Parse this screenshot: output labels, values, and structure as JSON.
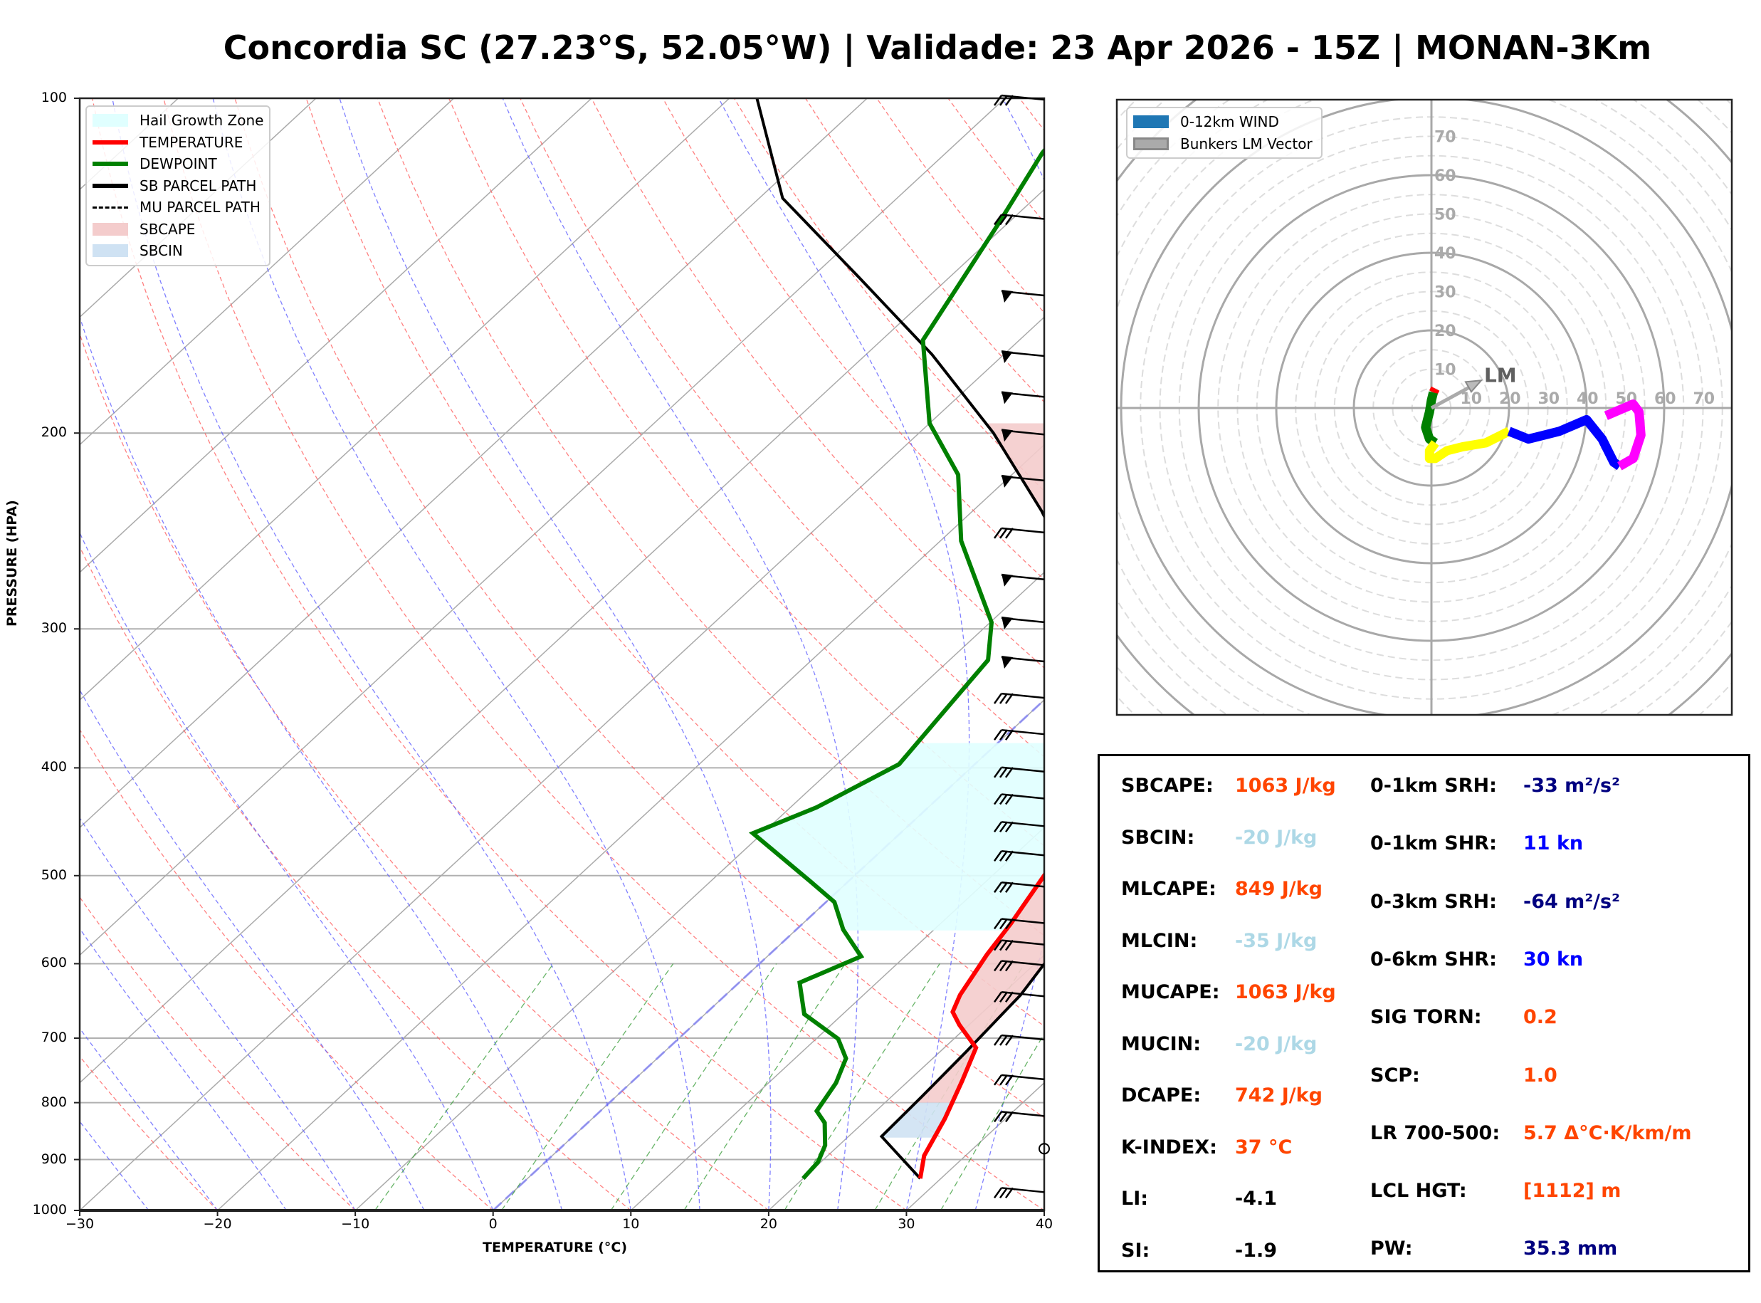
{
  "title": "Concordia SC (27.23°S, 52.05°W) | Validade: 23 Apr 2026 - 15Z | MONAN-3Km",
  "chart_data": [
    {
      "type": "line",
      "name": "skew-T log-P diagram",
      "xlabel": "TEMPERATURE (°C)",
      "ylabel": "PRESSURE (HPA)",
      "xlim": [
        -30,
        40
      ],
      "ylim": [
        1000,
        100
      ],
      "yscale": "log",
      "x_ticks": [
        "−30",
        "−20",
        "−10",
        "0",
        "10",
        "20",
        "30",
        "40"
      ],
      "y_ticks": [
        "100",
        "200",
        "300",
        "400",
        "500",
        "600",
        "700",
        "800",
        "900",
        "1000"
      ],
      "y_tick_values": [
        100,
        200,
        300,
        400,
        500,
        600,
        700,
        800,
        900,
        1000
      ],
      "legend": {
        "position": "top-left",
        "entries": [
          {
            "label": "Hail Growth Zone",
            "color": "#e0ffff",
            "kind": "patch"
          },
          {
            "label": "TEMPERATURE",
            "color": "#ff0000",
            "kind": "line"
          },
          {
            "label": "DEWPOINT",
            "color": "#008000",
            "kind": "line"
          },
          {
            "label": "SB PARCEL PATH",
            "color": "#000000",
            "kind": "line"
          },
          {
            "label": "MU PARCEL PATH",
            "color": "#000000",
            "kind": "dashed"
          },
          {
            "label": "SBCAPE",
            "color": "#f4cccc",
            "kind": "patch"
          },
          {
            "label": "SBCIN",
            "color": "#cfe2f3",
            "kind": "patch"
          }
        ]
      },
      "series": [
        {
          "name": "TEMPERATURE",
          "color": "#ff0000",
          "points": [
            [
              28.5,
              936
            ],
            [
              27.0,
              893
            ],
            [
              25.6,
              827
            ],
            [
              23.9,
              765
            ],
            [
              22.3,
              714
            ],
            [
              19.3,
              681
            ],
            [
              17.8,
              663
            ],
            [
              17.0,
              640
            ],
            [
              15.8,
              589
            ],
            [
              15.1,
              552
            ],
            [
              13.7,
              498
            ],
            [
              12.6,
              466
            ],
            [
              9.7,
              421
            ],
            [
              6.7,
              375
            ],
            [
              3.2,
              339
            ],
            [
              1.1,
              318
            ],
            [
              -1.8,
              294
            ],
            [
              -5.7,
              263
            ],
            [
              -10.8,
              227
            ],
            [
              -17.9,
              187
            ],
            [
              -20.6,
              166
            ],
            [
              -27.7,
              146
            ],
            [
              -30.0,
              129
            ],
            [
              -38.0,
              100
            ]
          ]
        },
        {
          "name": "DEWPOINT",
          "color": "#008000",
          "points": [
            [
              20.0,
              936
            ],
            [
              19.8,
              905
            ],
            [
              19.0,
              874
            ],
            [
              17.2,
              834
            ],
            [
              15.7,
              814
            ],
            [
              14.9,
              768
            ],
            [
              13.7,
              730
            ],
            [
              11.6,
              701
            ],
            [
              7.2,
              666
            ],
            [
              4.4,
              624
            ],
            [
              6.8,
              591
            ],
            [
              3.4,
              559
            ],
            [
              0.6,
              528
            ],
            [
              -2.6,
              507
            ],
            [
              -10.7,
              458
            ],
            [
              -8.1,
              434
            ],
            [
              -5.5,
              397
            ],
            [
              -6.5,
              350
            ],
            [
              -7.2,
              320
            ],
            [
              -9.9,
              296
            ],
            [
              -18.5,
              250
            ],
            [
              -23.9,
              218
            ],
            [
              -30.0,
              196
            ],
            [
              -37.0,
              165
            ],
            [
              -40.6,
              130
            ],
            [
              -43.0,
              112
            ],
            [
              -44.0,
              100
            ]
          ]
        },
        {
          "name": "SB PARCEL PATH",
          "color": "#000000",
          "points": [
            [
              28.5,
              936
            ],
            [
              25.2,
              893
            ],
            [
              22.4,
              858
            ],
            [
              22.2,
              790
            ],
            [
              21.9,
              720
            ],
            [
              21.4,
              640
            ],
            [
              20.3,
              580
            ],
            [
              18.4,
              520
            ],
            [
              15.8,
              470
            ],
            [
              12.1,
              420
            ],
            [
              7.3,
              370
            ],
            [
              1.0,
              320
            ],
            [
              -6.3,
              275
            ],
            [
              -15.0,
              235
            ],
            [
              -24.6,
              200
            ],
            [
              -35.2,
              170
            ],
            [
              -46.5,
              145
            ],
            [
              -58.3,
              123
            ],
            [
              -68.0,
              100
            ]
          ]
        }
      ],
      "areas": [
        {
          "name": "SBCAPE",
          "color": "#f4cccc",
          "between": [
            "TEMPERATURE",
            "SB PARCEL PATH"
          ],
          "p_range": [
            800,
            196
          ]
        },
        {
          "name": "SBCIN",
          "color": "#cfe2f3",
          "between": [
            "TEMPERATURE",
            "SB PARCEL PATH"
          ],
          "p_range": [
            860,
            800
          ]
        },
        {
          "name": "Hail Growth Zone",
          "color": "#e0ffff",
          "p_range": [
            560,
            380
          ]
        }
      ],
      "wind_barbs": [
        {
          "p": 100,
          "label": "barb"
        },
        {
          "p": 128,
          "label": "barb"
        },
        {
          "p": 150,
          "label": "barb"
        },
        {
          "p": 170,
          "label": "barb"
        },
        {
          "p": 185,
          "label": "barb"
        },
        {
          "p": 200,
          "label": "barb"
        },
        {
          "p": 220,
          "label": "barb"
        },
        {
          "p": 245,
          "label": "barb"
        },
        {
          "p": 270,
          "label": "barb"
        },
        {
          "p": 295,
          "label": "barb"
        },
        {
          "p": 320,
          "label": "barb"
        },
        {
          "p": 345,
          "label": "barb"
        },
        {
          "p": 372,
          "label": "barb"
        },
        {
          "p": 402,
          "label": "barb"
        },
        {
          "p": 425,
          "label": "barb"
        },
        {
          "p": 450,
          "label": "barb"
        },
        {
          "p": 478,
          "label": "barb"
        },
        {
          "p": 510,
          "label": "barb"
        },
        {
          "p": 550,
          "label": "barb"
        },
        {
          "p": 575,
          "label": "barb"
        },
        {
          "p": 600,
          "label": "barb"
        },
        {
          "p": 640,
          "label": "barb"
        },
        {
          "p": 700,
          "label": "barb"
        },
        {
          "p": 760,
          "label": "barb"
        },
        {
          "p": 820,
          "label": "barb"
        },
        {
          "p": 880,
          "label": "calm"
        },
        {
          "p": 960,
          "label": "barb"
        }
      ]
    },
    {
      "type": "line",
      "name": "hodograph",
      "units": "kn",
      "ring_labels": [
        "10",
        "20",
        "30",
        "40",
        "50",
        "60",
        "70"
      ],
      "ring_values": [
        10,
        20,
        30,
        40,
        50,
        60,
        70
      ],
      "legend": {
        "position": "top-left",
        "entries": [
          {
            "label": "0-12km WIND",
            "color": "#1f77b4"
          },
          {
            "label": "Bunkers LM Vector",
            "color": "#aaaaaa"
          }
        ]
      },
      "lm_label": "LM",
      "lm_vector": [
        11,
        6
      ],
      "segments": [
        {
          "color": "#ff0000",
          "points": [
            [
              1,
              5
            ],
            [
              0.5,
              4
            ]
          ]
        },
        {
          "color": "#008000",
          "points": [
            [
              0.5,
              4
            ],
            [
              0,
              2
            ],
            [
              -0.5,
              -1
            ],
            [
              -1,
              -3
            ],
            [
              -1.5,
              -5
            ],
            [
              -0.5,
              -8
            ],
            [
              1,
              -9
            ]
          ]
        },
        {
          "color": "#ffff00",
          "points": [
            [
              1,
              -9
            ],
            [
              -0.5,
              -11
            ],
            [
              -0.5,
              -13
            ],
            [
              1,
              -13
            ],
            [
              4,
              -11
            ],
            [
              8,
              -10
            ],
            [
              14,
              -9
            ],
            [
              20,
              -6
            ]
          ]
        },
        {
          "color": "#0000ff",
          "points": [
            [
              20,
              -6
            ],
            [
              25,
              -8
            ],
            [
              33,
              -6
            ],
            [
              40,
              -3
            ],
            [
              44,
              -8
            ],
            [
              47,
              -14
            ],
            [
              48.5,
              -15
            ]
          ]
        },
        {
          "color": "#ff00ff",
          "points": [
            [
              48.5,
              -15
            ],
            [
              52,
              -13
            ],
            [
              54,
              -7
            ],
            [
              53.5,
              -1
            ],
            [
              52,
              1
            ],
            [
              45,
              -2
            ]
          ]
        }
      ]
    }
  ],
  "stats": {
    "left": [
      {
        "label": "SBCAPE:",
        "value": "1063 J/kg",
        "color": "#ff4500"
      },
      {
        "label": "SBCIN:",
        "value": "-20 J/kg",
        "color": "#add8e6"
      },
      {
        "label": "MLCAPE:",
        "value": "849 J/kg",
        "color": "#ff4500"
      },
      {
        "label": "MLCIN:",
        "value": "-35 J/kg",
        "color": "#add8e6"
      },
      {
        "label": "MUCAPE:",
        "value": "1063 J/kg",
        "color": "#ff4500"
      },
      {
        "label": "MUCIN:",
        "value": "-20 J/kg",
        "color": "#add8e6"
      },
      {
        "label": "DCAPE:",
        "value": "742 J/kg",
        "color": "#ff4500"
      },
      {
        "label": "K-INDEX:",
        "value": "37 °C",
        "color": "#ff4500"
      },
      {
        "label": "LI:",
        "value": "-4.1",
        "color": "#000000"
      },
      {
        "label": "SI:",
        "value": "-1.9",
        "color": "#000000"
      }
    ],
    "right": [
      {
        "label": "0-1km SRH:",
        "value": "-33 m²/s²",
        "color": "#000080"
      },
      {
        "label": "0-1km SHR:",
        "value": "11 kn",
        "color": "#0000ff"
      },
      {
        "label": "0-3km SRH:",
        "value": "-64 m²/s²",
        "color": "#000080"
      },
      {
        "label": "0-6km SHR:",
        "value": "30 kn",
        "color": "#0000ff"
      },
      {
        "label": "SIG TORN:",
        "value": "0.2",
        "color": "#ff4500"
      },
      {
        "label": "SCP:",
        "value": "1.0",
        "color": "#ff4500"
      },
      {
        "label": "LR 700-500:",
        "value": "5.7 Δ°C·K/km/m",
        "color": "#ff4500"
      },
      {
        "label": "LCL HGT:",
        "value": "[1112] m",
        "color": "#ff4500"
      },
      {
        "label": "PW:",
        "value": "35.3 mm",
        "color": "#000080"
      }
    ]
  }
}
